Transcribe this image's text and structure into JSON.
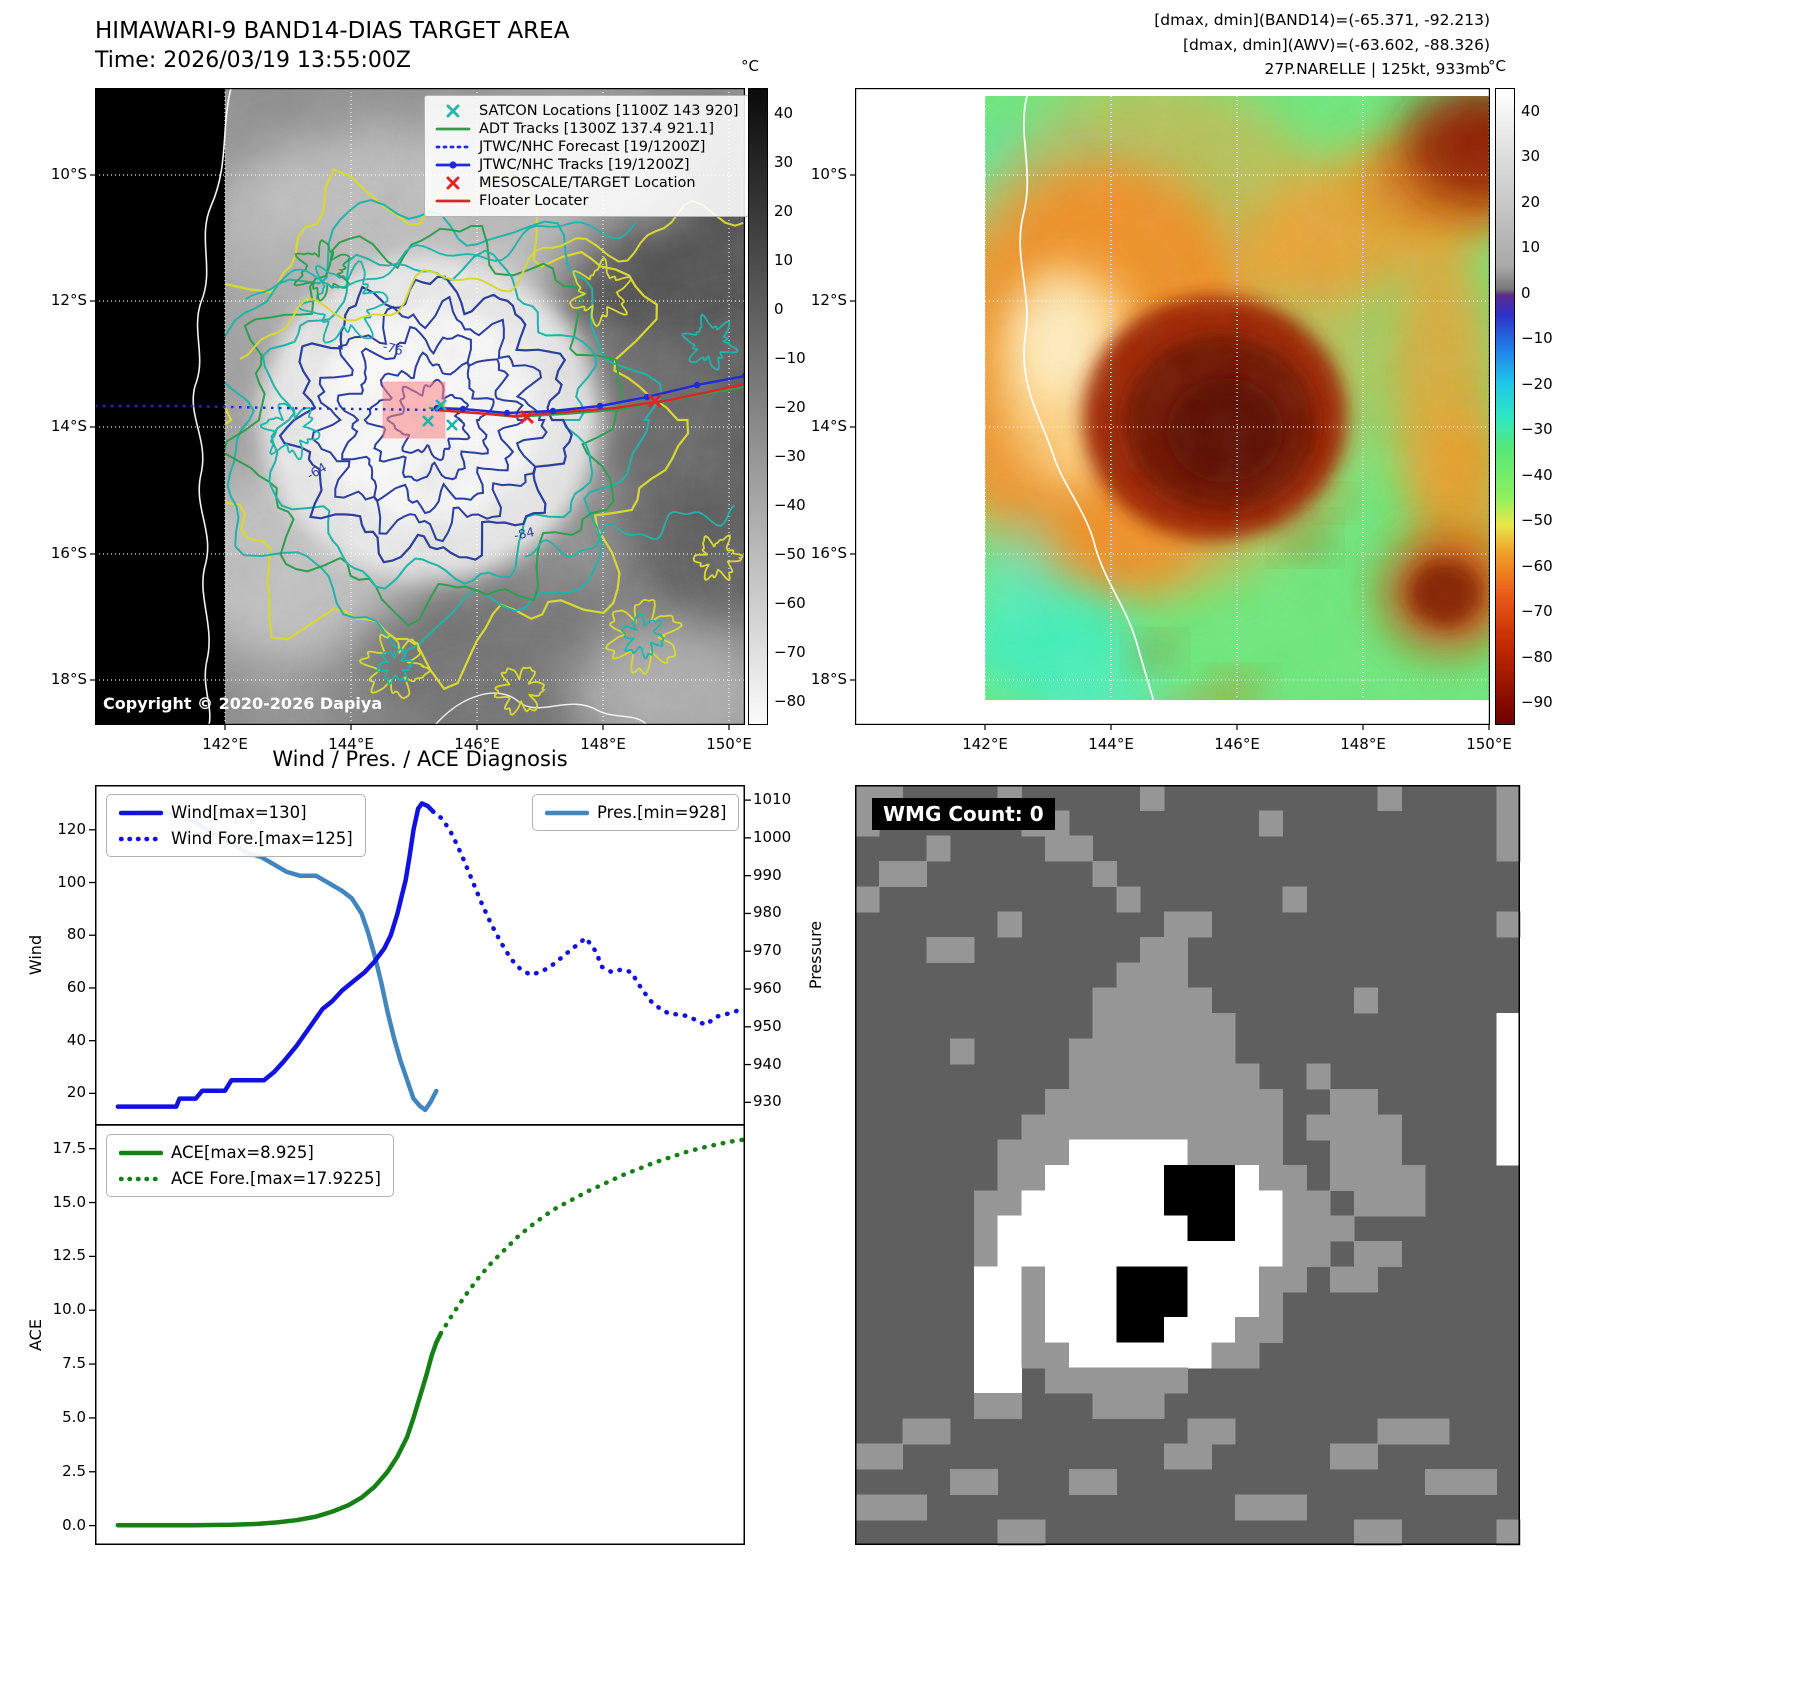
{
  "band14": {
    "title": "HIMAWARI-9 BAND14-DIAS TARGET AREA",
    "time": "Time: 2026/03/19 13:55:00Z",
    "copyright": "Copyright © 2020-2026 Dapiya",
    "lat_ticks": [
      "10°S",
      "12°S",
      "14°S",
      "16°S",
      "18°S"
    ],
    "lon_ticks": [
      "142°E",
      "144°E",
      "146°E",
      "148°E",
      "150°E"
    ],
    "contour_labels": [
      "-64",
      "-76",
      "-84"
    ],
    "colorbar": {
      "unit": "°C",
      "vmin": -85,
      "vmax": 45,
      "ticks": [
        40,
        30,
        20,
        10,
        0,
        -10,
        -20,
        -30,
        -40,
        -50,
        -60,
        -70,
        -80
      ],
      "stops": [
        {
          "o": 0.0,
          "c": "#0a0a0a"
        },
        {
          "o": 1.0,
          "c": "#fbfbfb"
        }
      ]
    },
    "colors": {
      "contour_yellow": "#d8d832",
      "contour_teal": "#1fb3aa",
      "contour_green": "#2e9e4f",
      "contour_navy": "#2d3f9e",
      "track_blue": "#1f2bd6",
      "track_red": "#e02424",
      "target_fill": "#ff8585"
    },
    "legend": [
      {
        "glyph": "x-marker",
        "color": "#2ab5ac",
        "label": "SATCON Locations [1100Z 143 920]"
      },
      {
        "glyph": "line",
        "color": "#2e9e4f",
        "label": "ADT Tracks [1300Z 137.4 921.1]"
      },
      {
        "glyph": "dotted",
        "color": "#1f2bd6",
        "label": "JTWC/NHC Forecast [19/1200Z]"
      },
      {
        "glyph": "line-dot",
        "color": "#1f2bd6",
        "label": "JTWC/NHC Tracks [19/1200Z]"
      },
      {
        "glyph": "x-marker",
        "color": "#e02424",
        "label": "MESOSCALE/TARGET Location"
      },
      {
        "glyph": "line",
        "color": "#e02424",
        "label": "Floater Locater"
      }
    ]
  },
  "awv": {
    "annotations": [
      "[dmax, dmin](BAND14)=(-65.371, -92.213)",
      "[dmax, dmin](AWV)=(-63.602, -88.326)",
      "27P.NARELLE | 125kt, 933mb"
    ],
    "lat_ticks": [
      "10°S",
      "12°S",
      "14°S",
      "16°S",
      "18°S"
    ],
    "lon_ticks": [
      "142°E",
      "144°E",
      "146°E",
      "148°E",
      "150°E"
    ],
    "colorbar": {
      "unit": "°C",
      "vmin": -95,
      "vmax": 45,
      "ticks": [
        40,
        30,
        20,
        10,
        0,
        -10,
        -20,
        -30,
        -40,
        -50,
        -60,
        -70,
        -80,
        -90
      ],
      "stops": [
        {
          "o": 0.0,
          "c": "#ffffff"
        },
        {
          "o": 0.28,
          "c": "#a8a8a8"
        },
        {
          "o": 0.315,
          "c": "#787878"
        },
        {
          "o": 0.325,
          "c": "#5a2a8c"
        },
        {
          "o": 0.355,
          "c": "#3030c8"
        },
        {
          "o": 0.41,
          "c": "#2080e8"
        },
        {
          "o": 0.465,
          "c": "#20c8e8"
        },
        {
          "o": 0.52,
          "c": "#30e8c0"
        },
        {
          "o": 0.565,
          "c": "#55e878"
        },
        {
          "o": 0.64,
          "c": "#8af060"
        },
        {
          "o": 0.685,
          "c": "#e8e84a"
        },
        {
          "o": 0.73,
          "c": "#f0a028"
        },
        {
          "o": 0.8,
          "c": "#e85818"
        },
        {
          "o": 0.88,
          "c": "#c02800"
        },
        {
          "o": 1.0,
          "c": "#6e0000"
        }
      ]
    }
  },
  "diagnosis": {
    "title": "Wind / Pres. / ACE Diagnosis",
    "wind_axis_label": "Wind",
    "pressure_axis_label": "Pressure",
    "ace_axis_label": "ACE",
    "wind_ticks": [
      120,
      100,
      80,
      60,
      40,
      20
    ],
    "pressure_ticks": [
      1010,
      1000,
      990,
      980,
      970,
      960,
      950,
      940,
      930
    ],
    "ace_ticks": [
      "17.5",
      "15.0",
      "12.5",
      "10.0",
      "7.5",
      "5.0",
      "2.5",
      "0.0"
    ]
  },
  "wmg": {
    "label": "WMG Count: 0",
    "palette": {
      ".": "#5f5f5f",
      "m": "#969696",
      "w": "#ffffff",
      "k": "#000000"
    },
    "rows": [
      "mm....m.....m.........m....m",
      "m......mm........m.........m",
      "...m....mm.................m",
      ".mm.......m.................",
      "m..........m......m.........",
      "......m......mm............m",
      "...mm.......mm..............",
      "...........mmm..............",
      "..........mmmmm......m......",
      "..........mmmmmm...........w",
      "....m....mmmmmmm...........w",
      ".........mmmmmmmm..m.......w",
      "........mmmmmmmmmm..mm.....w",
      ".......mmmmmmmmmmm.mmmm....w",
      "......mmmwwwwwmmmm..mmm....w",
      "......mmwwwwwkkkwmm.mmmm....",
      ".....mmwwwwwwkkkwwmm.mmm....",
      ".....mwwwwwwwwkkwwmmm.......",
      ".....mwwwwwwwwwwwwmm.mm.....",
      ".....wwmwwwkkkwwwmm.mm......",
      ".....wwmwwwkkkwwwm..........",
      ".....wwmwwwkkwwwmm..........",
      ".....wwmmwwwwwwmm...........",
      ".....ww.mmmmmm..............",
      ".....mm...mmm...............",
      "..mm..........mm......mmm...",
      "mm...........mm.....mm......",
      "....mm...mm.............mmm.",
      "mmm.............mmm.........",
      "......mm.............mm....m"
    ]
  },
  "chart_data": [
    {
      "type": "line",
      "title": "Wind / Pres. Diagnosis",
      "x_range": [
        0,
        1
      ],
      "x_ticks_visible": false,
      "grid": false,
      "y_left": {
        "label": "Wind",
        "range": [
          8,
          137
        ],
        "ticks": [
          20,
          40,
          60,
          80,
          100,
          120
        ]
      },
      "y_right": {
        "label": "Pressure",
        "range": [
          924,
          1014
        ],
        "ticks": [
          930,
          940,
          950,
          960,
          970,
          980,
          990,
          1000,
          1010
        ]
      },
      "series": [
        {
          "name": "Wind[max=130]",
          "axis": "left",
          "style": "solid",
          "color": "#1212e0",
          "points": [
            [
              0.035,
              15
            ],
            [
              0.1,
              15
            ],
            [
              0.125,
              15
            ],
            [
              0.13,
              18
            ],
            [
              0.155,
              18
            ],
            [
              0.165,
              21
            ],
            [
              0.2,
              21
            ],
            [
              0.21,
              25
            ],
            [
              0.26,
              25
            ],
            [
              0.275,
              28
            ],
            [
              0.29,
              32
            ],
            [
              0.31,
              38
            ],
            [
              0.33,
              45
            ],
            [
              0.35,
              52
            ],
            [
              0.365,
              55
            ],
            [
              0.38,
              59
            ],
            [
              0.4,
              63
            ],
            [
              0.415,
              66
            ],
            [
              0.43,
              70
            ],
            [
              0.445,
              75
            ],
            [
              0.455,
              80
            ],
            [
              0.465,
              88
            ],
            [
              0.472,
              95
            ],
            [
              0.478,
              101
            ],
            [
              0.484,
              110
            ],
            [
              0.49,
              120
            ],
            [
              0.497,
              128
            ],
            [
              0.503,
              130
            ],
            [
              0.512,
              129
            ],
            [
              0.52,
              127
            ]
          ]
        },
        {
          "name": "Wind Fore.[max=125]",
          "axis": "left",
          "style": "dotted",
          "color": "#1212e0",
          "points": [
            [
              0.52,
              127
            ],
            [
              0.535,
              124
            ],
            [
              0.55,
              118
            ],
            [
              0.565,
              110
            ],
            [
              0.58,
              101
            ],
            [
              0.595,
              92
            ],
            [
              0.61,
              84
            ],
            [
              0.625,
              77
            ],
            [
              0.64,
              71
            ],
            [
              0.655,
              67
            ],
            [
              0.67,
              65
            ],
            [
              0.685,
              66
            ],
            [
              0.7,
              68
            ],
            [
              0.715,
              71
            ],
            [
              0.73,
              74
            ],
            [
              0.745,
              77
            ],
            [
              0.755,
              79
            ],
            [
              0.77,
              74
            ],
            [
              0.78,
              68
            ],
            [
              0.795,
              66
            ],
            [
              0.81,
              67
            ],
            [
              0.825,
              66
            ],
            [
              0.84,
              60
            ],
            [
              0.855,
              55
            ],
            [
              0.87,
              52
            ],
            [
              0.885,
              50
            ],
            [
              0.9,
              50
            ],
            [
              0.915,
              49
            ],
            [
              0.93,
              47
            ],
            [
              0.94,
              46
            ],
            [
              0.955,
              49
            ],
            [
              0.97,
              50
            ],
            [
              0.985,
              51
            ],
            [
              0.998,
              53
            ]
          ]
        },
        {
          "name": "Pres.[min=928]",
          "axis": "right",
          "style": "solid",
          "color": "#4286bd",
          "points": [
            [
              0.07,
              1007
            ],
            [
              0.1,
              1007
            ],
            [
              0.13,
              1006
            ],
            [
              0.155,
              1004
            ],
            [
              0.175,
              1002
            ],
            [
              0.195,
              1000
            ],
            [
              0.215,
              998
            ],
            [
              0.235,
              996
            ],
            [
              0.255,
              995
            ],
            [
              0.275,
              993
            ],
            [
              0.295,
              991
            ],
            [
              0.315,
              990
            ],
            [
              0.34,
              990
            ],
            [
              0.36,
              988
            ],
            [
              0.38,
              986
            ],
            [
              0.395,
              984
            ],
            [
              0.41,
              980
            ],
            [
              0.42,
              975
            ],
            [
              0.43,
              969
            ],
            [
              0.44,
              962
            ],
            [
              0.45,
              954
            ],
            [
              0.46,
              947
            ],
            [
              0.47,
              941
            ],
            [
              0.48,
              936
            ],
            [
              0.49,
              931
            ],
            [
              0.5,
              929
            ],
            [
              0.508,
              928
            ],
            [
              0.516,
              930
            ],
            [
              0.525,
              933
            ]
          ]
        }
      ]
    },
    {
      "type": "line",
      "title": "ACE Diagnosis",
      "x_range": [
        0,
        1
      ],
      "x_ticks_visible": false,
      "grid": false,
      "y_left": {
        "label": "ACE",
        "range": [
          -0.9,
          18.6
        ],
        "ticks": [
          0,
          2.5,
          5,
          7.5,
          10,
          12.5,
          15,
          17.5
        ]
      },
      "series": [
        {
          "name": "ACE[max=8.925]",
          "axis": "left",
          "style": "solid",
          "color": "#168016",
          "points": [
            [
              0.035,
              0.02
            ],
            [
              0.15,
              0.02
            ],
            [
              0.21,
              0.04
            ],
            [
              0.25,
              0.08
            ],
            [
              0.28,
              0.15
            ],
            [
              0.31,
              0.25
            ],
            [
              0.34,
              0.42
            ],
            [
              0.365,
              0.65
            ],
            [
              0.39,
              0.95
            ],
            [
              0.41,
              1.3
            ],
            [
              0.43,
              1.8
            ],
            [
              0.45,
              2.5
            ],
            [
              0.465,
              3.2
            ],
            [
              0.48,
              4.1
            ],
            [
              0.49,
              5.0
            ],
            [
              0.5,
              6.0
            ],
            [
              0.51,
              7.0
            ],
            [
              0.518,
              7.9
            ],
            [
              0.525,
              8.5
            ],
            [
              0.532,
              8.925
            ]
          ]
        },
        {
          "name": "ACE Fore.[max=17.9225]",
          "axis": "left",
          "style": "dotted",
          "color": "#168016",
          "points": [
            [
              0.532,
              8.925
            ],
            [
              0.55,
              9.8
            ],
            [
              0.57,
              10.7
            ],
            [
              0.59,
              11.5
            ],
            [
              0.61,
              12.2
            ],
            [
              0.63,
              12.8
            ],
            [
              0.65,
              13.4
            ],
            [
              0.67,
              13.9
            ],
            [
              0.69,
              14.35
            ],
            [
              0.71,
              14.75
            ],
            [
              0.735,
              15.15
            ],
            [
              0.76,
              15.55
            ],
            [
              0.785,
              15.9
            ],
            [
              0.81,
              16.25
            ],
            [
              0.835,
              16.55
            ],
            [
              0.86,
              16.85
            ],
            [
              0.885,
              17.1
            ],
            [
              0.91,
              17.35
            ],
            [
              0.935,
              17.55
            ],
            [
              0.96,
              17.72
            ],
            [
              0.98,
              17.84
            ],
            [
              0.998,
              17.92
            ]
          ]
        }
      ]
    }
  ]
}
